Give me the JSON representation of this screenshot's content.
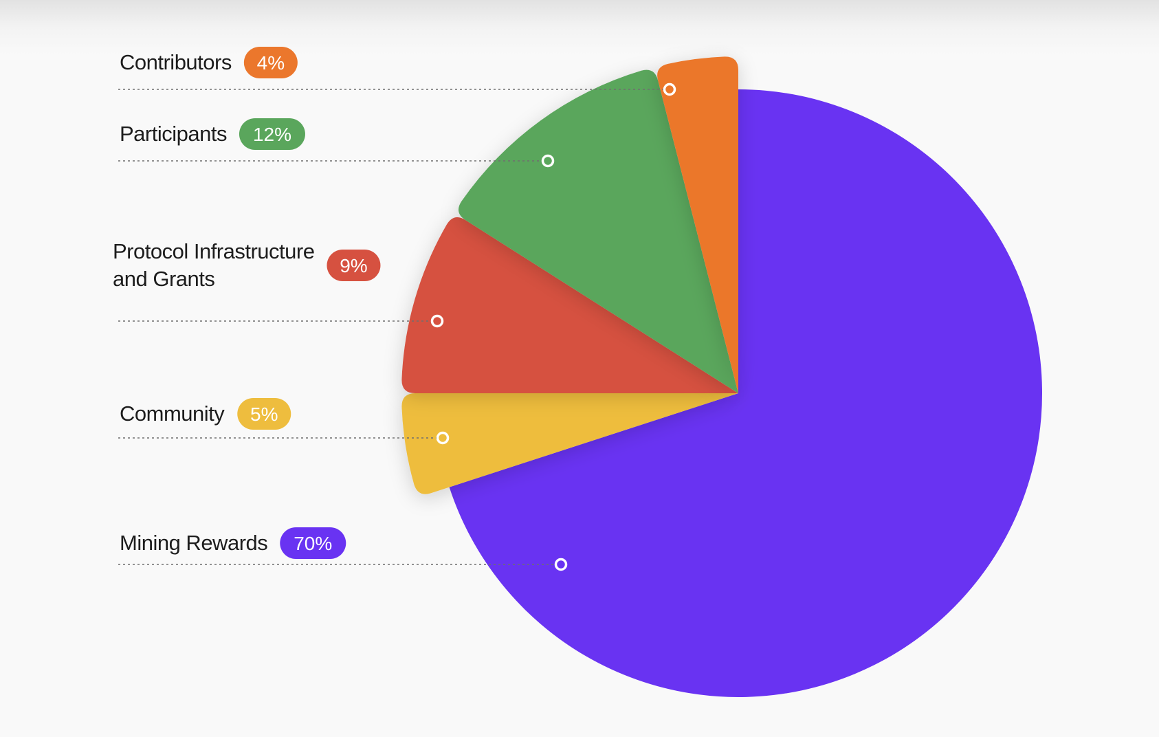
{
  "chart_data": {
    "type": "pie",
    "title": "",
    "slices": [
      {
        "label": "Mining Rewards",
        "label_lines": [
          "Mining Rewards"
        ],
        "value": 70,
        "display": "70%",
        "color": "#6933f2",
        "exploded": false
      },
      {
        "label": "Community",
        "label_lines": [
          "Community"
        ],
        "value": 5,
        "display": "5%",
        "color": "#eebd3e",
        "exploded": true
      },
      {
        "label": "Protocol Infrastructure and Grants",
        "label_lines": [
          "Protocol Infrastructure",
          "and Grants"
        ],
        "value": 9,
        "display": "9%",
        "color": "#d65140",
        "exploded": true
      },
      {
        "label": "Participants",
        "label_lines": [
          "Participants"
        ],
        "value": 12,
        "display": "12%",
        "color": "#5aa65c",
        "exploded": true
      },
      {
        "label": "Contributors",
        "label_lines": [
          "Contributors"
        ],
        "value": 4,
        "display": "4%",
        "color": "#eb772c",
        "exploded": true
      }
    ],
    "start_angle_deg": 90,
    "direction": "counterclockwise",
    "legend": "left",
    "grid": false,
    "background_color": "#f9f9f9",
    "label_color": "#1d1d1d",
    "connector_color": "#6f6f6f"
  }
}
